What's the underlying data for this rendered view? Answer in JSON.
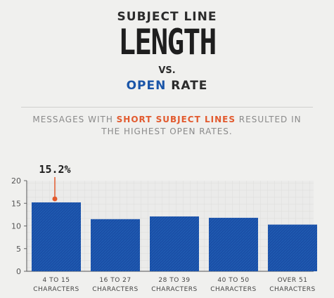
{
  "header": {
    "line1": "SUBJECT LINE",
    "line2": "LENGTH",
    "line3": "VS.",
    "line4_highlight": "OPEN",
    "line4_rest": " RATE"
  },
  "subtitle": {
    "pre": "MESSAGES WITH ",
    "highlight": "SHORT SUBJECT LINES",
    "post": " RESULTED IN",
    "line2": "THE HIGHEST OPEN RATES."
  },
  "colors": {
    "bar": "#1a4fa6",
    "accent": "#e25a2e",
    "highlight_blue": "#1a55a8"
  },
  "chart_data": {
    "type": "bar",
    "categories": [
      [
        "4 TO 15",
        "CHARACTERS"
      ],
      [
        "16 TO 27",
        "CHARACTERS"
      ],
      [
        "28 TO 39",
        "CHARACTERS"
      ],
      [
        "40 TO 50",
        "CHARACTERS"
      ],
      [
        "OVER 51",
        "CHARACTERS"
      ]
    ],
    "values": [
      15.2,
      11.5,
      12.1,
      11.8,
      10.3
    ],
    "ylim": [
      0,
      20
    ],
    "yticks": [
      0,
      5,
      10,
      15,
      20
    ],
    "grid": true,
    "callout": {
      "index": 0,
      "label": "15.2%"
    }
  }
}
